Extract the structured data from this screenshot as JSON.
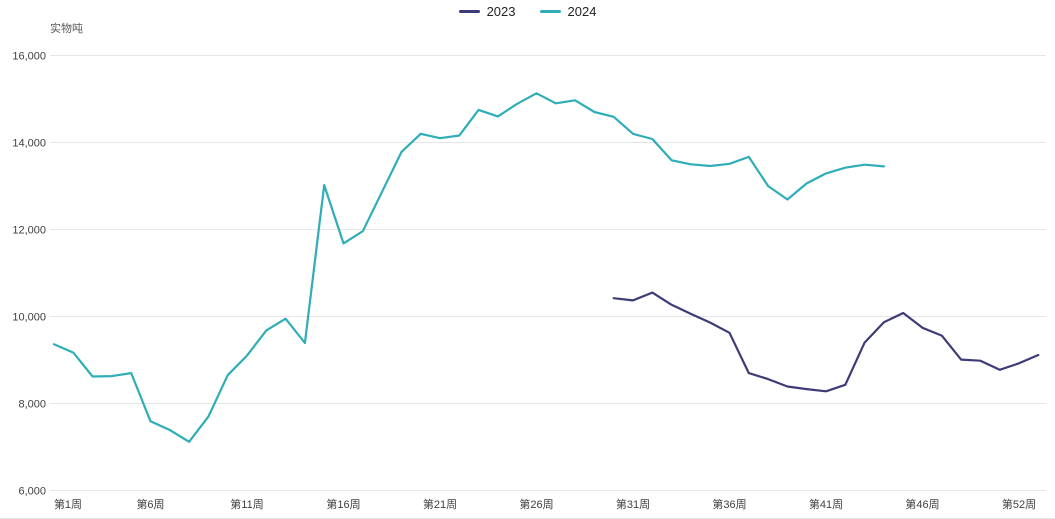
{
  "chart_data": {
    "type": "line",
    "title": "",
    "unit_label": "实物吨",
    "grid": "horizontal",
    "legend_position": "top-center",
    "x_axis": {
      "kind": "category-week",
      "total_weeks": 52,
      "tick_weeks": [
        1,
        6,
        11,
        16,
        21,
        26,
        31,
        36,
        41,
        46,
        52
      ],
      "tick_labels": [
        "第1周",
        "第6周",
        "第11周",
        "第16周",
        "第21周",
        "第26周",
        "第31周",
        "第36周",
        "第41周",
        "第46周",
        "第52周"
      ]
    },
    "y_axis": {
      "min": 6000,
      "max": 16000,
      "tick_interval": 2000,
      "tick_values": [
        16000,
        14000,
        12000,
        10000,
        8000,
        6000
      ],
      "tick_labels": [
        "16,000",
        "14,000",
        "12,000",
        "10,000",
        "8,000",
        "6,000"
      ]
    },
    "series": [
      {
        "name": "2023",
        "color": "#3e3c76",
        "start_week": 30,
        "values": [
          10420,
          10370,
          10550,
          10270,
          10060,
          9860,
          9625,
          8700,
          8560,
          8390,
          8330,
          8280,
          8430,
          9400,
          9870,
          10080,
          9740,
          9560,
          9010,
          8985,
          8775,
          8925,
          9115
        ]
      },
      {
        "name": "2024",
        "color": "#2fadb8",
        "start_week": 1,
        "values": [
          9360,
          9170,
          8620,
          8630,
          8700,
          7590,
          7390,
          7120,
          7700,
          8650,
          9100,
          9680,
          9950,
          9390,
          13020,
          11680,
          11960,
          12870,
          13780,
          14200,
          14100,
          14160,
          14750,
          14600,
          14890,
          15130,
          14900,
          14970,
          14700,
          14590,
          14200,
          14080,
          13590,
          13500,
          13460,
          13510,
          13670,
          13000,
          12690,
          13060,
          13290,
          13420,
          13490,
          13450
        ]
      }
    ]
  }
}
